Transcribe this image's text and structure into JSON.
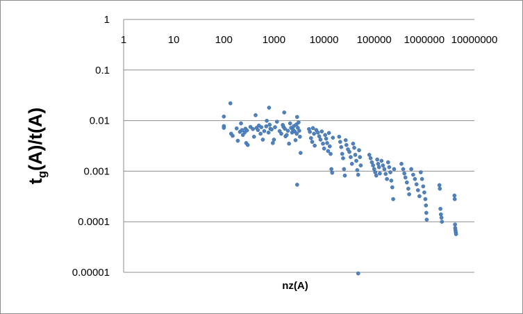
{
  "chart_data": {
    "type": "scatter",
    "title": "",
    "xlabel": "nz(A)",
    "ylabel_main": "t",
    "ylabel_sub": "g",
    "ylabel_rest": "(A)/t(A)",
    "x_scale": "log",
    "y_scale": "log",
    "xlim": [
      1,
      10000000
    ],
    "ylim": [
      1e-05,
      1
    ],
    "x_tick_labels": [
      "1",
      "10",
      "100",
      "1000",
      "10000",
      "100000",
      "1000000",
      "10000000"
    ],
    "y_tick_labels": [
      "1",
      "0.1",
      "0.01",
      "0.001",
      "0.0001",
      "0.00001"
    ],
    "grid": "horizontal",
    "legend": "none",
    "point_color": "#4f81bd",
    "points": [
      [
        100,
        0.012
      ],
      [
        100,
        0.0078
      ],
      [
        100,
        0.0072
      ],
      [
        135,
        0.022
      ],
      [
        140,
        0.0055
      ],
      [
        150,
        0.005
      ],
      [
        180,
        0.007
      ],
      [
        190,
        0.004
      ],
      [
        210,
        0.006
      ],
      [
        220,
        0.0088
      ],
      [
        230,
        0.0065
      ],
      [
        240,
        0.0052
      ],
      [
        260,
        0.0058
      ],
      [
        270,
        0.0069
      ],
      [
        280,
        0.0036
      ],
      [
        290,
        0.0064
      ],
      [
        300,
        0.0033
      ],
      [
        340,
        0.0075
      ],
      [
        380,
        0.0068
      ],
      [
        400,
        0.0048
      ],
      [
        430,
        0.0128
      ],
      [
        450,
        0.0072
      ],
      [
        480,
        0.0065
      ],
      [
        500,
        0.008
      ],
      [
        540,
        0.0055
      ],
      [
        560,
        0.0074
      ],
      [
        600,
        0.0042
      ],
      [
        640,
        0.0062
      ],
      [
        700,
        0.0077
      ],
      [
        720,
        0.0099
      ],
      [
        780,
        0.0058
      ],
      [
        800,
        0.018
      ],
      [
        820,
        0.0083
      ],
      [
        850,
        0.0069
      ],
      [
        900,
        0.0067
      ],
      [
        950,
        0.0036
      ],
      [
        1000,
        0.0042
      ],
      [
        1050,
        0.0074
      ],
      [
        1150,
        0.0095
      ],
      [
        1300,
        0.0062
      ],
      [
        1400,
        0.0055
      ],
      [
        1500,
        0.0082
      ],
      [
        1550,
        0.0075
      ],
      [
        1600,
        0.0145
      ],
      [
        1650,
        0.0069
      ],
      [
        1700,
        0.0049
      ],
      [
        1800,
        0.0052
      ],
      [
        1900,
        0.0063
      ],
      [
        2000,
        0.0035
      ],
      [
        2100,
        0.0088
      ],
      [
        2200,
        0.0072
      ],
      [
        2300,
        0.0058
      ],
      [
        2400,
        0.0066
      ],
      [
        2500,
        0.0078
      ],
      [
        2600,
        0.0061
      ],
      [
        2700,
        0.0041
      ],
      [
        2800,
        0.0084
      ],
      [
        2850,
        0.0055
      ],
      [
        2900,
        0.0118
      ],
      [
        3000,
        0.0072
      ],
      [
        3100,
        0.0092
      ],
      [
        3200,
        0.0063
      ],
      [
        3300,
        0.0048
      ],
      [
        3400,
        0.0023
      ],
      [
        2900,
        0.00054
      ],
      [
        5000,
        0.0068
      ],
      [
        5200,
        0.006
      ],
      [
        5500,
        0.0045
      ],
      [
        5800,
        0.0038
      ],
      [
        6000,
        0.0071
      ],
      [
        6300,
        0.0055
      ],
      [
        6500,
        0.0032
      ],
      [
        7000,
        0.0065
      ],
      [
        7500,
        0.0058
      ],
      [
        8000,
        0.0049
      ],
      [
        8500,
        0.0042
      ],
      [
        9000,
        0.0061
      ],
      [
        9500,
        0.0035
      ],
      [
        10000,
        0.0028
      ],
      [
        10500,
        0.0052
      ],
      [
        11000,
        0.0044
      ],
      [
        11500,
        0.0036
      ],
      [
        12000,
        0.0025
      ],
      [
        12500,
        0.0057
      ],
      [
        13000,
        0.0031
      ],
      [
        13500,
        0.0022
      ],
      [
        14000,
        0.0011
      ],
      [
        14500,
        0.00093
      ],
      [
        15000,
        0.0046
      ],
      [
        20000,
        0.0048
      ],
      [
        21000,
        0.0038
      ],
      [
        22000,
        0.003
      ],
      [
        23000,
        0.0022
      ],
      [
        24000,
        0.0018
      ],
      [
        25000,
        0.0011
      ],
      [
        26000,
        0.00082
      ],
      [
        27000,
        0.0041
      ],
      [
        28000,
        0.0033
      ],
      [
        30000,
        0.0027
      ],
      [
        32000,
        0.0024
      ],
      [
        34000,
        0.0019
      ],
      [
        36000,
        0.0014
      ],
      [
        38000,
        0.0035
      ],
      [
        40000,
        0.0029
      ],
      [
        42000,
        0.0021
      ],
      [
        44000,
        0.0016
      ],
      [
        46000,
        0.00105
      ],
      [
        48000,
        0.00085
      ],
      [
        50000,
        0.0026
      ],
      [
        52000,
        0.0019
      ],
      [
        54000,
        0.0013
      ],
      [
        48000,
        9.5e-06
      ],
      [
        80000,
        0.0021
      ],
      [
        85000,
        0.0018
      ],
      [
        90000,
        0.0015
      ],
      [
        95000,
        0.0013
      ],
      [
        100000,
        0.0011
      ],
      [
        105000,
        0.00095
      ],
      [
        110000,
        0.00082
      ],
      [
        115000,
        0.0017
      ],
      [
        120000,
        0.0014
      ],
      [
        125000,
        0.0012
      ],
      [
        130000,
        0.0009
      ],
      [
        140000,
        0.0016
      ],
      [
        150000,
        0.0013
      ],
      [
        160000,
        0.0011
      ],
      [
        170000,
        0.00088
      ],
      [
        180000,
        0.0007
      ],
      [
        190000,
        0.0015
      ],
      [
        200000,
        0.0012
      ],
      [
        210000,
        0.00095
      ],
      [
        220000,
        0.00065
      ],
      [
        230000,
        0.00048
      ],
      [
        240000,
        0.00028
      ],
      [
        250000,
        0.0011
      ],
      [
        350000,
        0.0014
      ],
      [
        380000,
        0.0011
      ],
      [
        400000,
        0.0009
      ],
      [
        420000,
        0.00075
      ],
      [
        450000,
        0.0006
      ],
      [
        480000,
        0.00045
      ],
      [
        500000,
        0.00035
      ],
      [
        550000,
        0.0011
      ],
      [
        600000,
        0.00085
      ],
      [
        650000,
        0.0007
      ],
      [
        700000,
        0.00055
      ],
      [
        750000,
        0.00042
      ],
      [
        800000,
        0.00032
      ],
      [
        850000,
        0.00095
      ],
      [
        900000,
        0.0007
      ],
      [
        950000,
        0.0005
      ],
      [
        1000000,
        0.00038
      ],
      [
        1050000,
        0.00028
      ],
      [
        1080000,
        0.00021
      ],
      [
        1100000,
        0.00015
      ],
      [
        1120000,
        0.00011
      ],
      [
        2000000,
        0.00053
      ],
      [
        2050000,
        0.00045
      ],
      [
        2100000,
        0.00018
      ],
      [
        2150000,
        0.00014
      ],
      [
        2200000,
        0.00012
      ],
      [
        2250000,
        0.0001
      ],
      [
        4000000,
        0.00033
      ],
      [
        4050000,
        0.00028
      ],
      [
        4100000,
        8.8e-05
      ],
      [
        4150000,
        7.5e-05
      ],
      [
        4200000,
        6.8e-05
      ],
      [
        4250000,
        6.2e-05
      ],
      [
        4300000,
        5.7e-05
      ]
    ]
  }
}
